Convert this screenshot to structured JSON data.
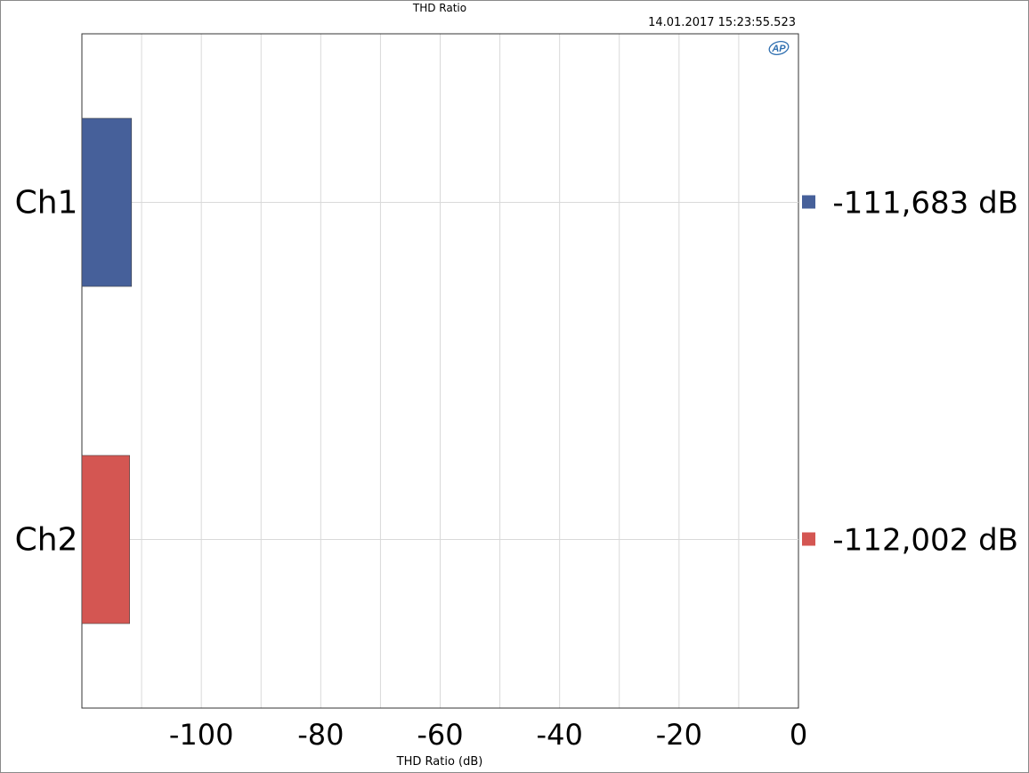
{
  "chart_data": {
    "type": "bar",
    "orientation": "horizontal",
    "title": "THD Ratio",
    "timestamp": "14.01.2017 15:23:55.523",
    "xlabel": "THD Ratio (dB)",
    "xlim": [
      -120,
      0
    ],
    "xticks": [
      -100,
      -80,
      -60,
      -40,
      -20,
      0
    ],
    "categories": [
      "Ch1",
      "Ch2"
    ],
    "values": [
      -111.683,
      -112.002
    ],
    "value_labels": [
      "-111,683  dB",
      "-112,002  dB"
    ],
    "colors": [
      "#46609a",
      "#d45652"
    ],
    "grid": true,
    "logo": "AP"
  }
}
